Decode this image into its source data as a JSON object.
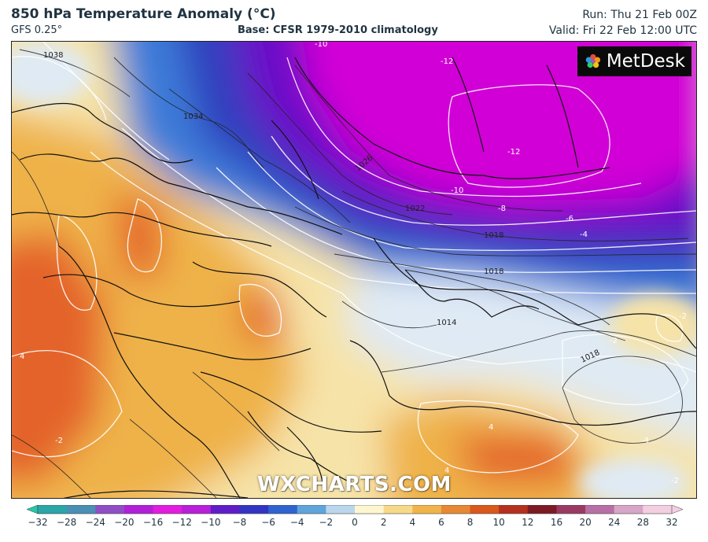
{
  "header": {
    "title": "850 hPa Temperature Anomaly (°C)",
    "model": "GFS 0.25°",
    "base": "Base: CFSR 1979-2010 climatology",
    "run": "Run: Thu 21 Feb 00Z",
    "valid": "Valid: Fri 22 Feb 12:00 UTC"
  },
  "map": {
    "brand": "MetDesk",
    "watermark": "WXCHARTS.COM",
    "isobar_labels": [
      "1038",
      "1034",
      "1026",
      "1022",
      "1018",
      "1018",
      "1018",
      "1014"
    ],
    "anomaly_labels": [
      "-10",
      "-12",
      "-12",
      "-10",
      "-8",
      "-6",
      "-4",
      "-2",
      "-2",
      "4",
      "-2",
      "-4",
      "4",
      "4",
      "-2"
    ],
    "colors": {
      "deep_cold": "#d100d6",
      "cold": "#6a10c8",
      "cool": "#2f3fbe",
      "cold_blue": "#3d7bd8",
      "near_zero": "#dfeaf4",
      "mild": "#f6e3a8",
      "warm": "#efb24a",
      "hot": "#e4642a"
    }
  },
  "colorbar": {
    "ticks": [
      "-32",
      "-28",
      "-24",
      "-20",
      "-16",
      "-12",
      "-10",
      "-8",
      "-6",
      "-4",
      "-2",
      "0",
      "2",
      "4",
      "6",
      "8",
      "10",
      "12",
      "16",
      "20",
      "24",
      "28",
      "32"
    ],
    "colors": [
      "#22c9a6",
      "#2aa6a8",
      "#4a8fb4",
      "#8f4fc4",
      "#b21fd8",
      "#e21ddf",
      "#b81fd9",
      "#5e1dc7",
      "#3235c1",
      "#2f63cf",
      "#5ea5dc",
      "#bad7ee",
      "#fff6cf",
      "#f7d98a",
      "#f0b44a",
      "#e78834",
      "#d9581c",
      "#b5301f",
      "#7d1b25",
      "#9a3a63",
      "#b770a5",
      "#d7a6c7",
      "#f4cfe2"
    ]
  }
}
